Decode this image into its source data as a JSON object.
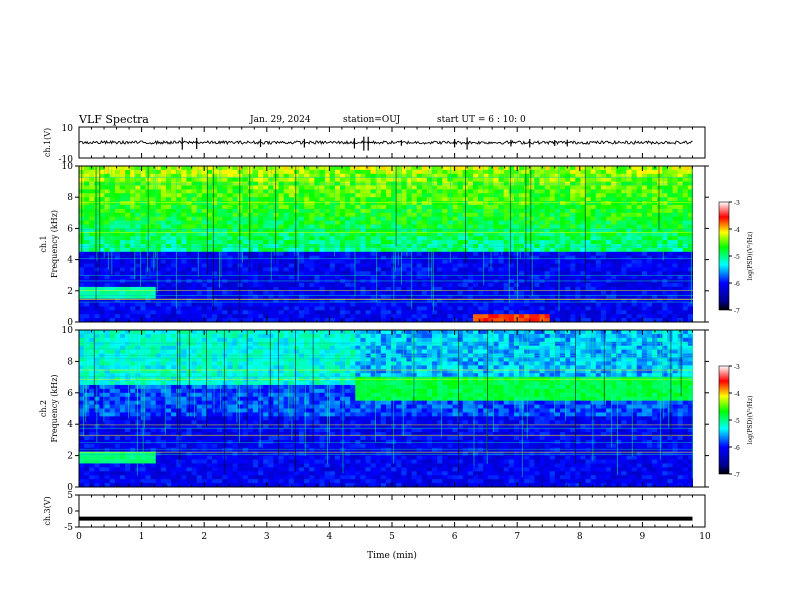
{
  "header": {
    "title": "VLF Spectra",
    "date": "Jan. 29, 2024",
    "station": "station=OUJ",
    "start": "start UT =  6 : 10: 0"
  },
  "chart_data": [
    {
      "type": "line",
      "panel": "ch1-waveform",
      "ylabel": "ch.1(V)",
      "ylim": [
        -10,
        10
      ],
      "yticks": [
        "10",
        "-10"
      ],
      "xlim": [
        0,
        9.8
      ],
      "baseline": 0,
      "noise_band": [
        -1,
        1
      ],
      "spikes_min": [
        1.65,
        1.88,
        2.9,
        3.6,
        4.4,
        4.55,
        4.62,
        5.15,
        6.0,
        6.2,
        6.9,
        7.2,
        7.6,
        7.8
      ]
    },
    {
      "type": "heatmap",
      "panel": "ch1-spectrogram",
      "ylabel": "ch.1\nFrequency (kHz)",
      "ylim": [
        0,
        10
      ],
      "yticks": [
        "0",
        "2",
        "4",
        "6",
        "8",
        "10"
      ],
      "xlim": [
        0,
        10
      ],
      "colorbar": {
        "label": "log(PSD)(V²/Hz)",
        "range": [
          -7,
          -3
        ],
        "ticks": [
          "-3",
          "-4",
          "-5",
          "-6",
          "-7"
        ]
      },
      "features": {
        "broadband_top_kHz": [
          4.6,
          10
        ],
        "low_band_kHz": [
          1.5,
          2.3
        ],
        "low_band_end_min": 1.2,
        "red_feature_min": [
          6.3,
          7.5
        ],
        "red_feature_kHz": [
          0.1,
          0.4
        ]
      }
    },
    {
      "type": "heatmap",
      "panel": "ch2-spectrogram",
      "ylabel": "ch.2\nFrequency (kHz)",
      "ylim": [
        0,
        10
      ],
      "yticks": [
        "0",
        "2",
        "4",
        "6",
        "8",
        "10"
      ],
      "xlim": [
        0,
        10
      ],
      "colorbar": {
        "label": "log(PSD)(V²/Hz)",
        "range": [
          -7,
          -3
        ],
        "ticks": [
          "-3",
          "-4",
          "-5",
          "-6",
          "-7"
        ]
      },
      "features": {
        "green_band_kHz": [
          5.5,
          7
        ],
        "green_band_start_min": 4.4,
        "low_band_kHz": [
          1.6,
          2.3
        ],
        "low_band_end_min": 1.2
      }
    },
    {
      "type": "line",
      "panel": "ch3-waveform",
      "ylabel": "ch.3(V)",
      "ylim": [
        -5,
        5
      ],
      "yticks": [
        "5",
        "0",
        "-5"
      ],
      "xlim": [
        0,
        9.8
      ],
      "level": -2.4
    }
  ],
  "x_axis": {
    "label": "Time (min)",
    "ticks": [
      "0",
      "1",
      "2",
      "3",
      "4",
      "5",
      "6",
      "7",
      "8",
      "9",
      "10"
    ]
  }
}
